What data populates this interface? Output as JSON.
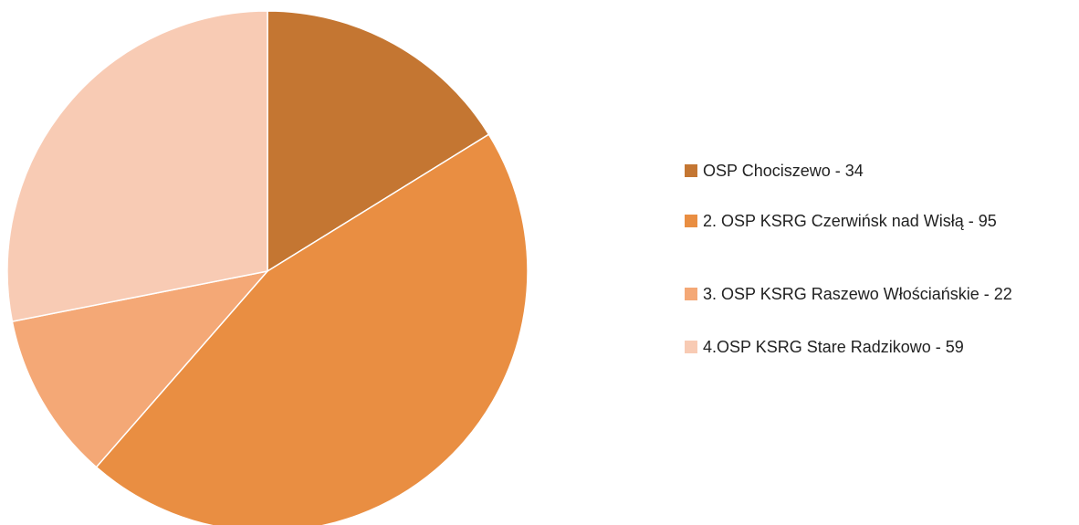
{
  "chart_data": {
    "type": "pie",
    "categories": [
      "OSP Chociszewo - 34",
      "2. OSP KSRG Czerwińsk nad Wisłą - 95",
      "3. OSP KSRG Raszewo Włościańskie - 22",
      "4.OSP KSRG Stare Radzikowo - 59"
    ],
    "values": [
      34,
      95,
      22,
      59
    ],
    "colors": [
      "#c47632",
      "#e98e42",
      "#f4a876",
      "#f8cbb4"
    ],
    "legend": "right"
  }
}
